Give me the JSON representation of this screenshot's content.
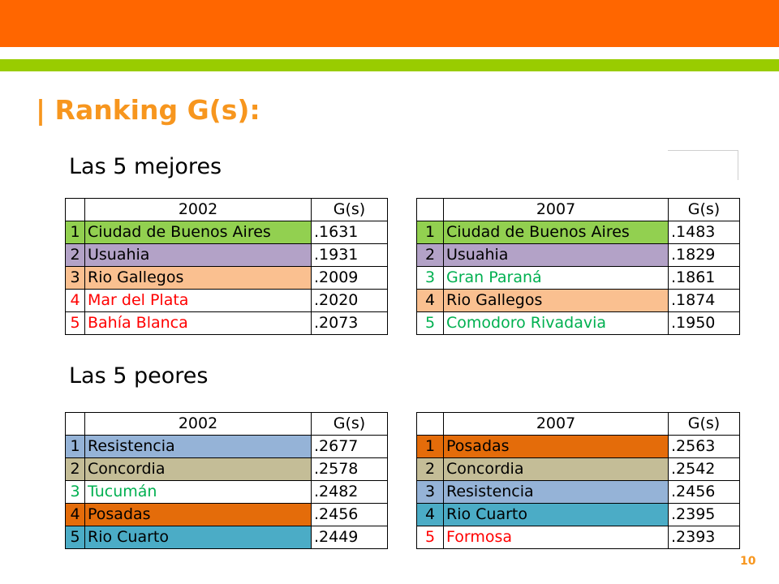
{
  "title": "| Ranking G(s):",
  "page_number": "10",
  "colors": {
    "header_orange": "#ff6600",
    "header_green": "#99cc00",
    "title_orange": "#f7961e",
    "green_fill": "#92d050",
    "lavender_fill": "#b3a2c7",
    "peach_fill": "#fac090",
    "blue_fill": "#95b3d7",
    "khaki_fill": "#c4bd97",
    "dark_orange_fill": "#e46c0a",
    "teal_fill": "#4bacc6",
    "red_text": "#ff0000",
    "green_text": "#00b050"
  },
  "best": {
    "label": "Las 5 mejores",
    "t2002": {
      "year": "2002",
      "gs": "G(s)",
      "rows": [
        {
          "num": "1",
          "name": "Ciudad de Buenos Aires",
          "value": ".1631",
          "fill": "#92d050",
          "text": "#000000"
        },
        {
          "num": "2",
          "name": "Usuahia",
          "value": ".1931",
          "fill": "#b3a2c7",
          "text": "#000000"
        },
        {
          "num": "3",
          "name": "Rio Gallegos",
          "value": ".2009",
          "fill": "#fac090",
          "text": "#000000"
        },
        {
          "num": "4",
          "name": "Mar del Plata",
          "value": ".2020",
          "fill": "",
          "text": "#ff0000"
        },
        {
          "num": "5",
          "name": "Bahía Blanca",
          "value": ".2073",
          "fill": "",
          "text": "#ff0000"
        }
      ]
    },
    "t2007": {
      "year": "2007",
      "gs": "G(s)",
      "rows": [
        {
          "num": "1",
          "name": "Ciudad de Buenos Aires",
          "value": ".1483",
          "fill": "#92d050",
          "text": "#000000"
        },
        {
          "num": "2",
          "name": "Usuahia",
          "value": ".1829",
          "fill": "#b3a2c7",
          "text": "#000000"
        },
        {
          "num": "3",
          "name": "Gran Paraná",
          "value": ".1861",
          "fill": "",
          "text": "#00b050"
        },
        {
          "num": "4",
          "name": "Rio Gallegos",
          "value": ".1874",
          "fill": "#fac090",
          "text": "#000000"
        },
        {
          "num": "5",
          "name": "Comodoro Rivadavia",
          "value": ".1950",
          "fill": "",
          "text": "#00b050"
        }
      ]
    }
  },
  "worst": {
    "label": "Las 5 peores",
    "t2002": {
      "year": "2002",
      "gs": "G(s)",
      "rows": [
        {
          "num": "1",
          "name": "Resistencia",
          "value": ".2677",
          "fill": "#95b3d7",
          "text": "#000000"
        },
        {
          "num": "2",
          "name": "Concordia",
          "value": ".2578",
          "fill": "#c4bd97",
          "text": "#000000"
        },
        {
          "num": "3",
          "name": "Tucumán",
          "value": ".2482",
          "fill": "",
          "text": "#00b050"
        },
        {
          "num": "4",
          "name": "Posadas",
          "value": ".2456",
          "fill": "#e46c0a",
          "text": "#000000"
        },
        {
          "num": "5",
          "name": "Rio Cuarto",
          "value": ".2449",
          "fill": "#4bacc6",
          "text": "#000000"
        }
      ]
    },
    "t2007": {
      "year": "2007",
      "gs": "G(s)",
      "rows": [
        {
          "num": "1",
          "name": "Posadas",
          "value": ".2563",
          "fill": "#e46c0a",
          "text": "#000000"
        },
        {
          "num": "2",
          "name": "Concordia",
          "value": ".2542",
          "fill": "#c4bd97",
          "text": "#000000"
        },
        {
          "num": "3",
          "name": "Resistencia",
          "value": ".2456",
          "fill": "#95b3d7",
          "text": "#000000"
        },
        {
          "num": "4",
          "name": "Rio Cuarto",
          "value": ".2395",
          "fill": "#4bacc6",
          "text": "#000000"
        },
        {
          "num": "5",
          "name": "Formosa",
          "value": ".2393",
          "fill": "",
          "text": "#ff0000"
        }
      ]
    }
  }
}
